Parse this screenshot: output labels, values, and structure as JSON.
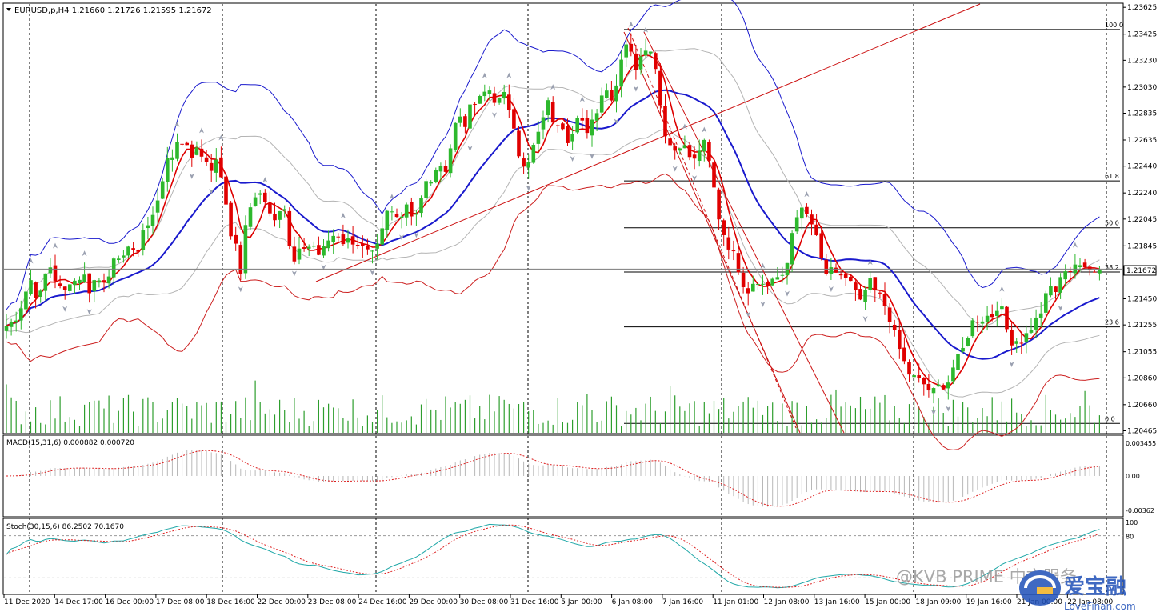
{
  "window": {
    "symbol_line": "EURUSD,p,H4  1.21660 1.21726 1.21595 1.21672",
    "current_price_label": "1.21672"
  },
  "watermark": {
    "text": "@KVB PRIME 中文服务",
    "logo_text": "爱宝融",
    "logo_sub": "LoveFinan.com"
  },
  "colors": {
    "bull": "#2db82d",
    "bear": "#e00000",
    "bb_outer": "#1a1acd",
    "bb_mid": "#1a1acd",
    "env_gray": "#b4b4b4",
    "ma_red": "#dd0000",
    "env_red": "#cc2020",
    "volume": "#2e9e2e",
    "macd_hist": "#b8b8b8",
    "macd_signal": "#dd2020",
    "stoch_main": "#20a8a8",
    "stoch_signal": "#dd2020",
    "grid": "#000000",
    "fib": "#000000"
  },
  "chart_data": [
    {
      "type": "candlestick",
      "title": "EURUSD,p,H4",
      "ohlc_header": [
        "1.21660",
        "1.21726",
        "1.21595",
        "1.21672"
      ],
      "y_ticks": [
        "1.23625",
        "1.23425",
        "1.23230",
        "1.23030",
        "1.22835",
        "1.22635",
        "1.22440",
        "1.22240",
        "1.22045",
        "1.21845",
        "1.21650",
        "1.21450",
        "1.21255",
        "1.21055",
        "1.20860",
        "1.20660",
        "1.20465"
      ],
      "y_tick_values": [
        1.23625,
        1.23425,
        1.2323,
        1.2303,
        1.22835,
        1.22635,
        1.2244,
        1.2224,
        1.22045,
        1.21845,
        1.2165,
        1.2145,
        1.21255,
        1.21055,
        1.2086,
        1.2066,
        1.20465
      ],
      "ylim": [
        1.2045,
        1.2365
      ],
      "x_tick_labels": [
        "11 Dec 2020",
        "14 Dec 17:00",
        "16 Dec 00:00",
        "17 Dec 08:00",
        "18 Dec 16:00",
        "22 Dec 00:00",
        "23 Dec 08:00",
        "24 Dec 16:00",
        "29 Dec 00:00",
        "30 Dec 08:00",
        "31 Dec 16:00",
        "5 Jan 00:00",
        "6 Jan 08:00",
        "7 Jan 16:00",
        "11 Jan 01:00",
        "12 Jan 08:00",
        "13 Jan 16:00",
        "15 Jan 00:00",
        "18 Jan 09:00",
        "19 Jan 16:00",
        "21 Jan 00:00",
        "22 Jan 08:00"
      ],
      "grid": "vertical dotted",
      "fibonacci": [
        {
          "level": "100.0",
          "price": 1.2346
        },
        {
          "level": "61.8",
          "price": 1.2233
        },
        {
          "level": "50.0",
          "price": 1.2198
        },
        {
          "level": "38.2",
          "price": 1.2165
        },
        {
          "level": "23.6",
          "price": 1.2124
        },
        {
          "level": "0.0",
          "price": 1.2052
        }
      ],
      "current_price": 1.21672,
      "price_path": [
        [
          0,
          1.2125
        ],
        [
          8,
          1.2128
        ],
        [
          16,
          1.2136
        ],
        [
          24,
          1.215
        ],
        [
          30,
          1.216
        ],
        [
          36,
          1.215
        ],
        [
          42,
          1.2145
        ],
        [
          48,
          1.2162
        ],
        [
          56,
          1.217
        ],
        [
          64,
          1.2155
        ],
        [
          72,
          1.2148
        ],
        [
          80,
          1.216
        ],
        [
          88,
          1.2158
        ],
        [
          96,
          1.2165
        ],
        [
          104,
          1.2152
        ],
        [
          112,
          1.216
        ],
        [
          120,
          1.2158
        ],
        [
          128,
          1.2165
        ],
        [
          136,
          1.2172
        ],
        [
          144,
          1.217
        ],
        [
          150,
          1.219
        ],
        [
          156,
          1.218
        ],
        [
          162,
          1.2175
        ],
        [
          168,
          1.2188
        ],
        [
          174,
          1.2202
        ],
        [
          180,
          1.2198
        ],
        [
          186,
          1.221
        ],
        [
          192,
          1.2225
        ],
        [
          198,
          1.224
        ],
        [
          204,
          1.2248
        ],
        [
          210,
          1.2252
        ],
        [
          216,
          1.2268
        ],
        [
          222,
          1.2258
        ],
        [
          228,
          1.2262
        ],
        [
          234,
          1.2252
        ],
        [
          240,
          1.2256
        ],
        [
          246,
          1.2252
        ],
        [
          252,
          1.2248
        ],
        [
          258,
          1.2244
        ],
        [
          264,
          1.2245
        ],
        [
          270,
          1.2238
        ],
        [
          276,
          1.2212
        ],
        [
          282,
          1.2192
        ],
        [
          288,
          1.219
        ],
        [
          294,
          1.216
        ],
        [
          300,
          1.22
        ],
        [
          306,
          1.221
        ],
        [
          312,
          1.2218
        ],
        [
          318,
          1.2228
        ],
        [
          324,
          1.2222
        ],
        [
          330,
          1.221
        ],
        [
          336,
          1.2206
        ],
        [
          342,
          1.2212
        ],
        [
          348,
          1.2222
        ],
        [
          354,
          1.2188
        ],
        [
          360,
          1.217
        ],
        [
          366,
          1.2175
        ],
        [
          372,
          1.2185
        ],
        [
          378,
          1.2182
        ],
        [
          384,
          1.2188
        ],
        [
          390,
          1.218
        ],
        [
          396,
          1.2176
        ],
        [
          402,
          1.2188
        ],
        [
          408,
          1.219
        ],
        [
          414,
          1.2195
        ],
        [
          420,
          1.2192
        ],
        [
          426,
          1.2185
        ],
        [
          432,
          1.219
        ],
        [
          438,
          1.2188
        ],
        [
          444,
          1.2186
        ],
        [
          450,
          1.218
        ],
        [
          456,
          1.2178
        ],
        [
          462,
          1.2176
        ],
        [
          468,
          1.2185
        ],
        [
          474,
          1.2198
        ],
        [
          480,
          1.2212
        ],
        [
          486,
          1.2208
        ],
        [
          492,
          1.2205
        ],
        [
          498,
          1.2212
        ],
        [
          504,
          1.2218
        ],
        [
          510,
          1.2206
        ],
        [
          516,
          1.2212
        ],
        [
          522,
          1.2222
        ],
        [
          528,
          1.2232
        ],
        [
          534,
          1.223
        ],
        [
          540,
          1.2244
        ],
        [
          546,
          1.224
        ],
        [
          552,
          1.2244
        ],
        [
          558,
          1.2258
        ],
        [
          564,
          1.2275
        ],
        [
          570,
          1.2282
        ],
        [
          576,
          1.2276
        ],
        [
          582,
          1.2285
        ],
        [
          588,
          1.229
        ],
        [
          594,
          1.2292
        ],
        [
          600,
          1.2298
        ],
        [
          606,
          1.2302
        ],
        [
          612,
          1.2296
        ],
        [
          618,
          1.229
        ],
        [
          624,
          1.2298
        ],
        [
          630,
          1.229
        ],
        [
          636,
          1.2284
        ],
        [
          642,
          1.226
        ],
        [
          648,
          1.2244
        ],
        [
          654,
          1.2238
        ],
        [
          660,
          1.2256
        ],
        [
          666,
          1.2262
        ],
        [
          672,
          1.2272
        ],
        [
          678,
          1.2296
        ],
        [
          684,
          1.2284
        ],
        [
          690,
          1.2275
        ],
        [
          696,
          1.2282
        ],
        [
          702,
          1.227
        ],
        [
          708,
          1.2262
        ],
        [
          714,
          1.2272
        ],
        [
          720,
          1.228
        ],
        [
          726,
          1.2272
        ],
        [
          732,
          1.2272
        ],
        [
          738,
          1.2282
        ],
        [
          744,
          1.229
        ],
        [
          750,
          1.2302
        ],
        [
          756,
          1.23
        ],
        [
          762,
          1.2296
        ],
        [
          768,
          1.2308
        ],
        [
          774,
          1.233
        ],
        [
          780,
          1.2338
        ],
        [
          786,
          1.2325
        ],
        [
          792,
          1.2318
        ],
        [
          798,
          1.233
        ],
        [
          804,
          1.2335
        ],
        [
          810,
          1.2328
        ],
        [
          816,
          1.232
        ],
        [
          822,
          1.229
        ],
        [
          828,
          1.227
        ],
        [
          834,
          1.226
        ],
        [
          840,
          1.2256
        ],
        [
          846,
          1.2262
        ],
        [
          852,
          1.2258
        ],
        [
          858,
          1.2252
        ],
        [
          864,
          1.2246
        ],
        [
          870,
          1.2256
        ],
        [
          876,
          1.2262
        ],
        [
          882,
          1.225
        ],
        [
          888,
          1.2232
        ],
        [
          894,
          1.221
        ],
        [
          900,
          1.2196
        ],
        [
          906,
          1.2188
        ],
        [
          912,
          1.218
        ],
        [
          918,
          1.2172
        ],
        [
          924,
          1.2162
        ],
        [
          930,
          1.215
        ],
        [
          936,
          1.2155
        ],
        [
          942,
          1.2162
        ],
        [
          948,
          1.2158
        ],
        [
          954,
          1.2152
        ],
        [
          960,
          1.2158
        ],
        [
          966,
          1.2164
        ],
        [
          972,
          1.2158
        ],
        [
          978,
          1.216
        ],
        [
          984,
          1.218
        ],
        [
          990,
          1.2205
        ],
        [
          996,
          1.2212
        ],
        [
          1002,
          1.2208
        ],
        [
          1008,
          1.2206
        ],
        [
          1014,
          1.2198
        ],
        [
          1020,
          1.2185
        ],
        [
          1026,
          1.217
        ],
        [
          1032,
          1.2162
        ],
        [
          1038,
          1.2165
        ],
        [
          1044,
          1.216
        ],
        [
          1050,
          1.2164
        ],
        [
          1056,
          1.216
        ],
        [
          1062,
          1.2156
        ],
        [
          1068,
          1.2148
        ],
        [
          1074,
          1.214
        ],
        [
          1080,
          1.2152
        ],
        [
          1086,
          1.2156
        ],
        [
          1092,
          1.215
        ],
        [
          1098,
          1.2146
        ],
        [
          1104,
          1.214
        ],
        [
          1110,
          1.2132
        ],
        [
          1116,
          1.2118
        ],
        [
          1122,
          1.2108
        ],
        [
          1128,
          1.2098
        ],
        [
          1134,
          1.209
        ],
        [
          1140,
          1.2086
        ],
        [
          1146,
          1.2084
        ],
        [
          1152,
          1.2082
        ],
        [
          1158,
          1.2078
        ],
        [
          1164,
          1.2074
        ],
        [
          1170,
          1.2078
        ],
        [
          1176,
          1.2082
        ],
        [
          1182,
          1.208
        ],
        [
          1188,
          1.2092
        ],
        [
          1194,
          1.2098
        ],
        [
          1200,
          1.2102
        ],
        [
          1206,
          1.2115
        ],
        [
          1212,
          1.2124
        ],
        [
          1218,
          1.2132
        ],
        [
          1224,
          1.2128
        ],
        [
          1230,
          1.2134
        ],
        [
          1236,
          1.213
        ],
        [
          1242,
          1.2136
        ],
        [
          1248,
          1.2144
        ],
        [
          1254,
          1.2128
        ],
        [
          1260,
          1.2118
        ],
        [
          1266,
          1.2112
        ],
        [
          1272,
          1.2116
        ],
        [
          1278,
          1.2114
        ],
        [
          1284,
          1.212
        ],
        [
          1290,
          1.2126
        ],
        [
          1296,
          1.213
        ],
        [
          1302,
          1.2138
        ],
        [
          1308,
          1.2148
        ],
        [
          1314,
          1.2155
        ],
        [
          1320,
          1.215
        ],
        [
          1326,
          1.216
        ],
        [
          1332,
          1.217
        ],
        [
          1338,
          1.2166
        ],
        [
          1344,
          1.2172
        ],
        [
          1350,
          1.2166
        ],
        [
          1356,
          1.2168
        ],
        [
          1362,
          1.217
        ],
        [
          1368,
          1.2168
        ],
        [
          1374,
          1.2167
        ]
      ]
    },
    {
      "type": "macd",
      "title": "MACD(15,31,6) 0.000882 0.000720",
      "params": "MACD(15,31,6)",
      "values": [
        "0.000882",
        "0.000720"
      ],
      "y_ticks": [
        "0.003455",
        "0.00",
        "-0.00362"
      ],
      "ylim": [
        -0.0042,
        0.0042
      ]
    },
    {
      "type": "stochastic",
      "title": "Stoch(30,15,6) 86.2502 70.1670",
      "params": "Stoch(30,15,6)",
      "values": [
        "86.2502",
        "70.1670"
      ],
      "y_ticks": [
        "100",
        "80"
      ],
      "levels": [
        80,
        20
      ],
      "ylim": [
        0,
        100
      ]
    }
  ]
}
